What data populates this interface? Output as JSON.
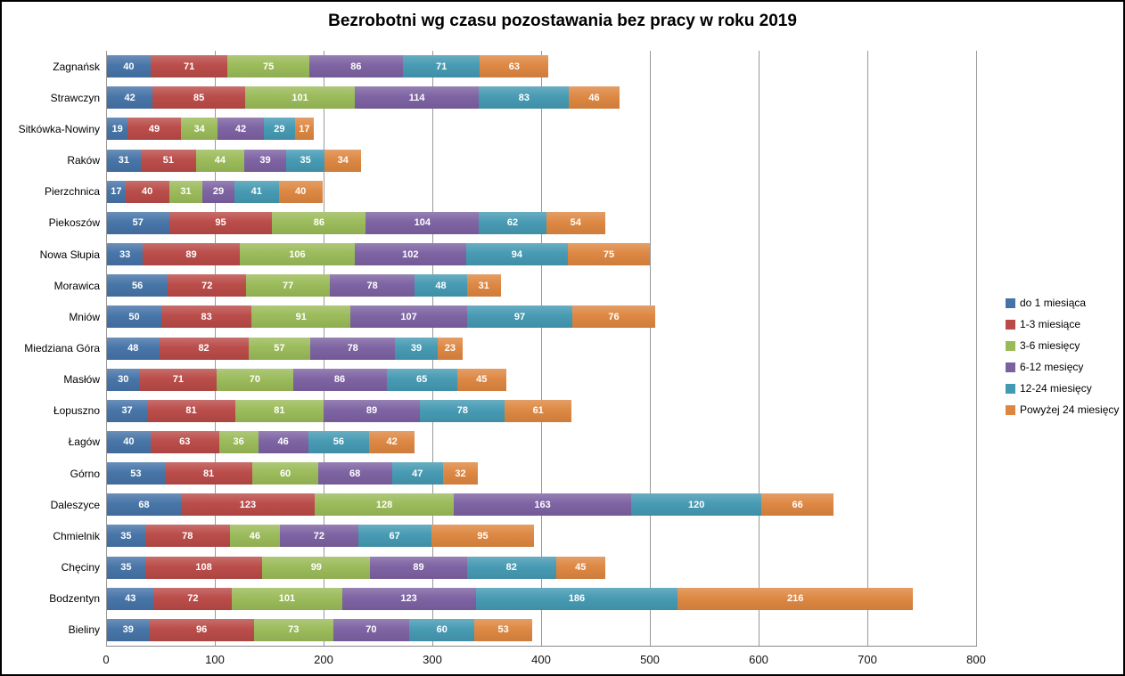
{
  "title": "Bezrobotni wg czasu pozostawania bez pracy w roku 2019",
  "colors": {
    "background": "#ffffff",
    "frame_border": "#000000",
    "gridline": "#999999",
    "axis_line": "#898989",
    "value_label_text": "#ffffff"
  },
  "chart_data": {
    "type": "bar",
    "orientation": "horizontal",
    "stacked": true,
    "title": "Bezrobotni wg czasu pozostawania bez pracy w roku 2019",
    "xlabel": "",
    "ylabel": "",
    "xlim": [
      0,
      800
    ],
    "x_ticks": [
      0,
      100,
      200,
      300,
      400,
      500,
      600,
      700,
      800
    ],
    "grid": "vertical",
    "legend_position": "right",
    "value_labels": "white bold centered in each segment",
    "categories": [
      "Zagnańsk",
      "Strawczyn",
      "Sitkówka-Nowiny",
      "Raków",
      "Pierzchnica",
      "Piekoszów",
      "Nowa Słupia",
      "Morawica",
      "Mniów",
      "Miedziana Góra",
      "Masłów",
      "Łopuszno",
      "Łagów",
      "Górno",
      "Daleszyce",
      "Chmielnik",
      "Chęciny",
      "Bodzentyn",
      "Bieliny"
    ],
    "series": [
      {
        "name": "do 1 miesiąca",
        "color": "#4573A7",
        "values": [
          40,
          42,
          19,
          31,
          17,
          57,
          33,
          56,
          50,
          48,
          30,
          37,
          40,
          53,
          68,
          35,
          35,
          43,
          39
        ]
      },
      {
        "name": "1-3 miesiące",
        "color": "#B94A47",
        "values": [
          71,
          85,
          49,
          51,
          40,
          95,
          89,
          72,
          83,
          82,
          71,
          81,
          63,
          81,
          123,
          78,
          108,
          72,
          96
        ]
      },
      {
        "name": "3-6 miesięcy",
        "color": "#9ABA58",
        "values": [
          75,
          101,
          34,
          44,
          31,
          86,
          106,
          77,
          91,
          57,
          70,
          81,
          36,
          60,
          128,
          46,
          99,
          101,
          73
        ]
      },
      {
        "name": "6-12 mesięcy",
        "color": "#7C61A1",
        "values": [
          86,
          114,
          42,
          39,
          29,
          104,
          102,
          78,
          107,
          78,
          86,
          89,
          46,
          68,
          163,
          72,
          89,
          123,
          70
        ]
      },
      {
        "name": "12-24 miesięcy",
        "color": "#4499B2",
        "values": [
          71,
          83,
          29,
          35,
          41,
          62,
          94,
          48,
          97,
          39,
          65,
          78,
          56,
          47,
          120,
          67,
          82,
          186,
          60
        ]
      },
      {
        "name": "Powyżej 24 miesięcy",
        "color": "#DD8640",
        "values": [
          63,
          46,
          17,
          34,
          40,
          54,
          75,
          31,
          76,
          23,
          45,
          61,
          42,
          32,
          66,
          95,
          45,
          216,
          53
        ]
      }
    ]
  }
}
